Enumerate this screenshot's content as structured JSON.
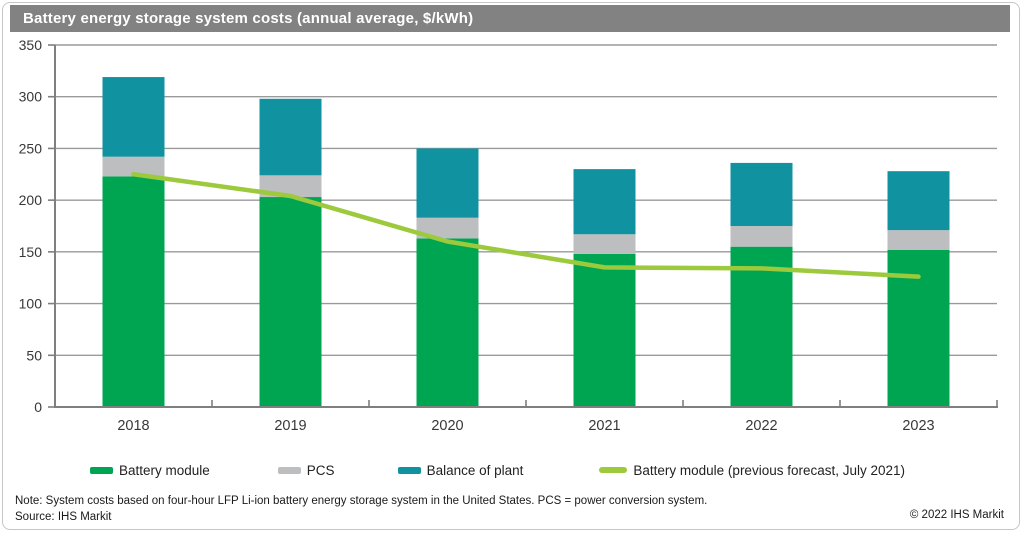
{
  "title": "Battery energy storage system costs (annual average, $/kWh)",
  "chart_data": {
    "type": "bar",
    "stacked": true,
    "title": "Battery energy storage system costs (annual average, $/kWh)",
    "xlabel": "",
    "ylabel": "",
    "categories": [
      "2018",
      "2019",
      "2020",
      "2021",
      "2022",
      "2023"
    ],
    "series": [
      {
        "name": "Battery module",
        "type": "bar",
        "color_key": "battery",
        "values": [
          223,
          203,
          163,
          148,
          155,
          152
        ]
      },
      {
        "name": "PCS",
        "type": "bar",
        "color_key": "pcs",
        "values": [
          19,
          21,
          20,
          19,
          20,
          19
        ]
      },
      {
        "name": "Balance of plant",
        "type": "bar",
        "color_key": "bop",
        "values": [
          77,
          74,
          67,
          63,
          61,
          57
        ]
      },
      {
        "name": "Battery module (previous forecast, July 2021)",
        "type": "line",
        "color_key": "forecast",
        "values": [
          225,
          204,
          160,
          135,
          134,
          126
        ]
      }
    ],
    "stack_totals": [
      319,
      298,
      250,
      230,
      236,
      228
    ],
    "ylim": [
      0,
      350
    ],
    "y_ticks": [
      0,
      50,
      100,
      150,
      200,
      250,
      300,
      350
    ],
    "grid": true,
    "legend_position": "bottom"
  },
  "colors": {
    "battery": "#00a551",
    "pcs": "#bcbec0",
    "bop": "#1192a0",
    "forecast": "#9cca3c",
    "title_bar_bg": "#828282",
    "title_text": "#ffffff",
    "gridline": "#9a9a9a",
    "axis": "#7f7f7f",
    "tick_text": "#383838"
  },
  "legend": {
    "items": [
      {
        "label": "Battery module",
        "color_key": "battery"
      },
      {
        "label": "PCS",
        "color_key": "pcs"
      },
      {
        "label": "Balance of plant",
        "color_key": "bop"
      },
      {
        "label": "Battery module (previous forecast, July 2021)",
        "color_key": "forecast"
      }
    ]
  },
  "footer": {
    "note": "Note: System costs based on four-hour LFP Li-ion battery energy storage system in the United States. PCS = power conversion system.",
    "source": "Source: IHS Markit",
    "copyright": "© 2022 IHS Markit"
  }
}
